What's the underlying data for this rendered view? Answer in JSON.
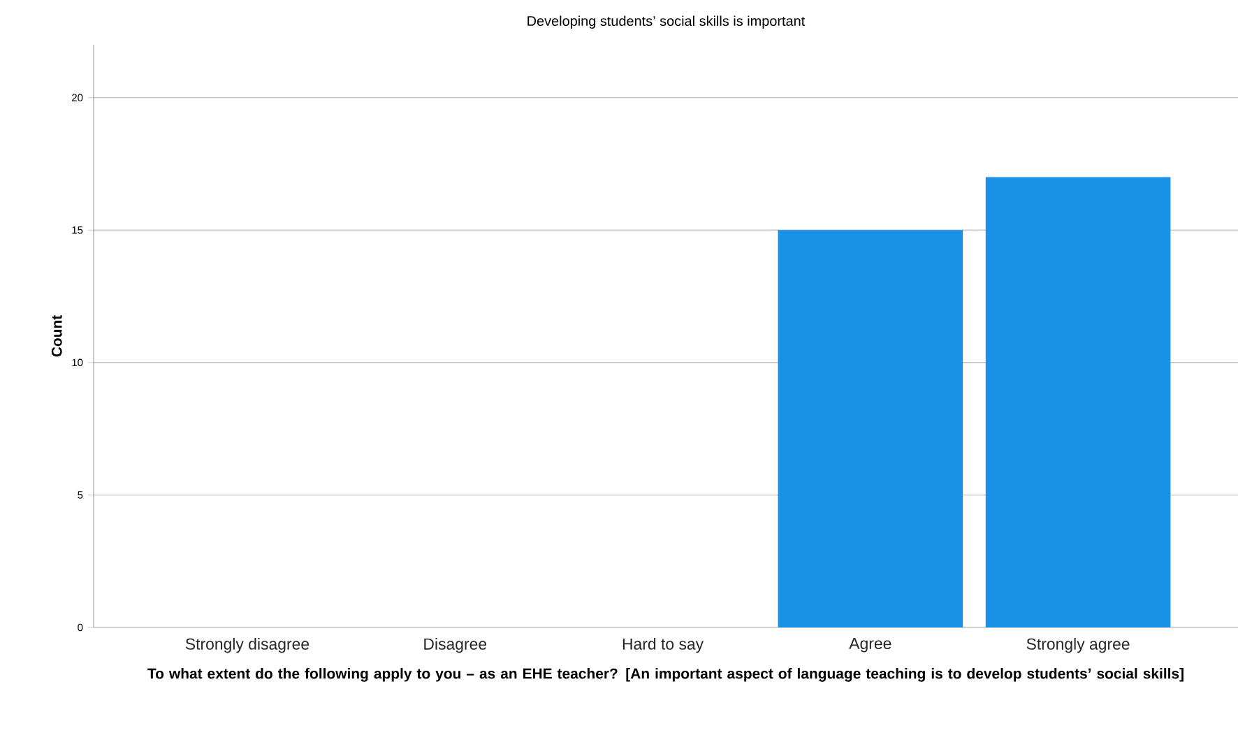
{
  "chart_data": {
    "type": "bar",
    "title": "Developing students’ social skills is important",
    "xlabel": "To what extent do the following apply to you – as an EHE teacher?  [An important aspect of language teaching is to develop students’ social skills]",
    "ylabel": "Count",
    "categories": [
      "Strongly disagree",
      "Disagree",
      "Hard to say",
      "Agree",
      "Strongly agree"
    ],
    "values": [
      0,
      0,
      0,
      15,
      17
    ],
    "color": "#1991e4",
    "ylim": [
      0,
      22
    ],
    "yticks": [
      0,
      5,
      10,
      15,
      20
    ],
    "grid": "y"
  }
}
